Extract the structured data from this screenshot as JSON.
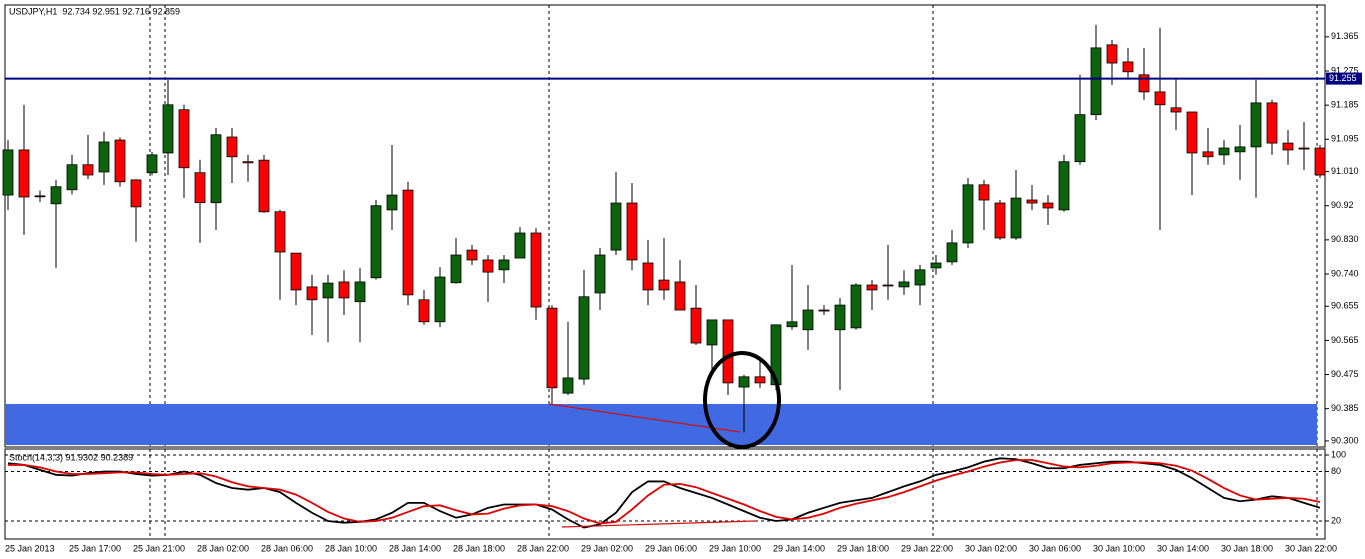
{
  "chart_data": [
    {
      "type": "candlestick",
      "title": "USDJPY,H1  92.734 92.951 92.716 92.859",
      "categories": [
        "25 Jan 2013",
        null,
        null,
        null,
        "25 Jan 17:00",
        null,
        null,
        null,
        "25 Jan 21:00",
        null,
        null,
        null,
        "28 Jan 02:00",
        null,
        null,
        null,
        "28 Jan 06:00",
        null,
        null,
        null,
        "28 Jan 10:00",
        null,
        null,
        null,
        "28 Jan 14:00",
        null,
        null,
        null,
        "28 Jan 18:00",
        null,
        null,
        null,
        "28 Jan 22:00",
        null,
        null,
        null,
        "29 Jan 02:00",
        null,
        null,
        null,
        "29 Jan 06:00",
        null,
        null,
        null,
        "29 Jan 10:00",
        null,
        null,
        null,
        "29 Jan 14:00",
        null,
        null,
        null,
        "29 Jan 18:00",
        null,
        null,
        null,
        "29 Jan 22:00",
        null,
        null,
        null,
        "30 Jan 02:00",
        null,
        null,
        null,
        "30 Jan 06:00",
        null,
        null,
        null,
        "30 Jan 10:00",
        null,
        null,
        null,
        "30 Jan 14:00",
        null,
        null,
        null,
        "30 Jan 18:00",
        null,
        null,
        null,
        "30 Jan 22:00",
        null,
        null
      ],
      "open": [
        90.948,
        91.067,
        90.946,
        90.925,
        90.962,
        91.028,
        91.009,
        91.093,
        90.988,
        91.007,
        91.059,
        91.173,
        91.007,
        90.928,
        91.101,
        91.036,
        91.04,
        90.904,
        90.795,
        90.706,
        90.677,
        90.719,
        90.667,
        90.73,
        90.909,
        90.961,
        90.672,
        90.614,
        90.717,
        90.803,
        90.777,
        90.751,
        90.782,
        90.848,
        90.65,
        90.426,
        90.463,
        90.69,
        90.803,
        90.927,
        90.769,
        90.724,
        90.719,
        90.65,
        90.553,
        90.619,
        90.442,
        90.469,
        90.448,
        90.601,
        90.593,
        90.645,
        90.593,
        90.598,
        90.711,
        90.711,
        90.706,
        90.711,
        90.756,
        90.772,
        90.822,
        90.975,
        90.927,
        90.835,
        90.935,
        90.927,
        90.909,
        91.036,
        91.16,
        91.344,
        91.299,
        91.265,
        91.22,
        91.178,
        91.167,
        91.062,
        91.054,
        91.062,
        91.075,
        91.191,
        91.085,
        91.072,
        91.072
      ],
      "high": [
        91.093,
        91.186,
        90.96,
        90.988,
        91.054,
        91.107,
        91.115,
        91.1,
        90.99,
        91.062,
        91.252,
        91.186,
        91.041,
        91.125,
        91.125,
        91.054,
        91.054,
        90.909,
        90.795,
        90.738,
        90.738,
        90.75,
        90.756,
        90.935,
        91.08,
        90.983,
        90.698,
        90.758,
        90.835,
        90.817,
        90.79,
        90.79,
        90.864,
        90.861,
        90.658,
        90.614,
        90.751,
        90.809,
        91.009,
        90.98,
        90.83,
        90.835,
        90.777,
        90.711,
        90.619,
        90.619,
        90.474,
        90.514,
        90.606,
        90.764,
        90.711,
        90.658,
        90.677,
        90.716,
        90.724,
        90.817,
        90.75,
        90.764,
        90.79,
        90.856,
        90.993,
        90.988,
        90.935,
        91.014,
        90.975,
        90.948,
        91.054,
        91.265,
        91.397,
        91.357,
        91.336,
        91.336,
        91.389,
        91.257,
        91.167,
        91.125,
        91.093,
        91.133,
        91.252,
        91.199,
        91.12,
        91.141,
        91.08
      ],
      "low": [
        90.909,
        90.843,
        90.93,
        90.756,
        90.95,
        90.99,
        90.975,
        90.97,
        90.825,
        91.0,
        91.001,
        90.94,
        90.822,
        90.856,
        90.98,
        90.983,
        90.901,
        90.672,
        90.658,
        90.579,
        90.56,
        90.632,
        90.56,
        90.725,
        90.856,
        90.658,
        90.606,
        90.6,
        90.714,
        90.764,
        90.666,
        90.716,
        90.782,
        90.619,
        90.395,
        90.421,
        90.448,
        90.645,
        90.79,
        90.75,
        90.658,
        90.672,
        90.645,
        90.553,
        90.474,
        90.421,
        90.323,
        90.44,
        90.434,
        90.593,
        90.54,
        90.632,
        90.434,
        90.593,
        90.645,
        90.672,
        90.685,
        90.658,
        90.738,
        90.764,
        90.809,
        90.856,
        90.83,
        90.83,
        90.909,
        90.869,
        90.904,
        91.028,
        91.146,
        91.238,
        91.252,
        91.199,
        90.856,
        91.12,
        90.948,
        91.028,
        91.028,
        90.988,
        90.941,
        91.054,
        91.028,
        91.014,
        90.993
      ],
      "close": [
        91.067,
        90.943,
        90.945,
        90.97,
        91.028,
        91.001,
        91.088,
        90.983,
        90.917,
        91.054,
        91.186,
        91.02,
        90.928,
        91.107,
        91.049,
        91.033,
        90.904,
        90.798,
        90.698,
        90.672,
        90.716,
        90.677,
        90.719,
        90.92,
        90.948,
        90.685,
        90.614,
        90.732,
        90.79,
        90.777,
        90.745,
        90.777,
        90.848,
        90.653,
        90.44,
        90.466,
        90.68,
        90.79,
        90.927,
        90.777,
        90.698,
        90.698,
        90.645,
        90.558,
        90.619,
        90.453,
        90.469,
        90.453,
        90.606,
        90.614,
        90.645,
        90.643,
        90.658,
        90.711,
        90.698,
        90.709,
        90.719,
        90.751,
        90.769,
        90.822,
        90.975,
        90.935,
        90.835,
        90.94,
        90.927,
        90.914,
        91.036,
        91.16,
        91.336,
        91.296,
        91.273,
        91.22,
        91.186,
        91.167,
        91.059,
        91.049,
        91.072,
        91.075,
        91.191,
        91.085,
        91.067,
        91.07,
        91.001
      ],
      "up_color": "#0b640b",
      "down_color": "#ff0000",
      "ylim": [
        90.284,
        91.449
      ],
      "yticks": [
        91.365,
        91.275,
        91.185,
        91.095,
        {
          "value": 91.01,
          "label": "91.010"
        },
        90.92,
        {
          "value": 90.83,
          "label": "90.830"
        },
        {
          "value": 90.74,
          "label": "90.740"
        },
        90.655,
        90.565,
        90.475,
        90.385,
        {
          "value": 90.3,
          "label": "90.300"
        }
      ],
      "hline": {
        "value": 91.255,
        "color": "#000080"
      }
    },
    {
      "type": "line",
      "title": "Stoch(14,3,3) 91.9302 90.2389",
      "series": [
        {
          "color": "#000000",
          "values": [
            90,
            88,
            82,
            76,
            75,
            78,
            80,
            80,
            77,
            75,
            76,
            80,
            76,
            66,
            60,
            58,
            60,
            55,
            42,
            30,
            20,
            18,
            19,
            22,
            30,
            42,
            42,
            32,
            24,
            28,
            36,
            40,
            40,
            40,
            34,
            22,
            12,
            16,
            30,
            55,
            68,
            68,
            60,
            54,
            48,
            40,
            32,
            24,
            20,
            22,
            30,
            36,
            42,
            45,
            48,
            55,
            62,
            68,
            76,
            80,
            85,
            92,
            96,
            95,
            90,
            84,
            84,
            88,
            90,
            92,
            92,
            90,
            88,
            82,
            72,
            60,
            48,
            44,
            46,
            50,
            48,
            42,
            36
          ]
        },
        {
          "color": "#e00000",
          "values": [
            88,
            88,
            85,
            80,
            77,
            77,
            78,
            79,
            79,
            77,
            76,
            77,
            78,
            74,
            67,
            62,
            60,
            58,
            52,
            42,
            31,
            23,
            19,
            20,
            24,
            31,
            38,
            39,
            33,
            28,
            29,
            35,
            39,
            40,
            38,
            32,
            23,
            17,
            19,
            34,
            51,
            64,
            65,
            61,
            54,
            47,
            40,
            32,
            25,
            22,
            24,
            29,
            36,
            41,
            45,
            49,
            55,
            62,
            69,
            75,
            80,
            86,
            91,
            94,
            94,
            90,
            86,
            85,
            87,
            90,
            91,
            91,
            90,
            87,
            81,
            71,
            60,
            51,
            46,
            47,
            48,
            47,
            43
          ]
        }
      ],
      "ylim": [
        -1.8,
        107.3
      ],
      "yticks": [
        100,
        80,
        20
      ]
    }
  ]
}
